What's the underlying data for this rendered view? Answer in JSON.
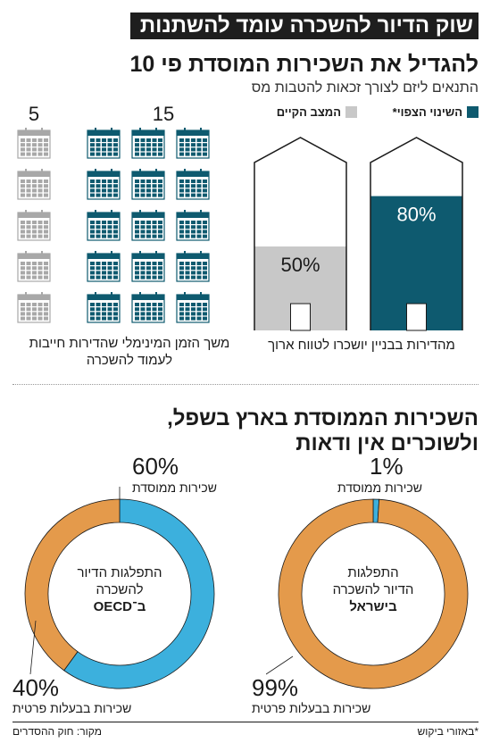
{
  "header": {
    "banner": "שוק הדיור להשכרה עומד להשתנות",
    "title": "להגדיל את השכירות המוסדת פי 10",
    "subtitle": "התנאים ליזם לצורך זכאות להטבות מס"
  },
  "legend": {
    "expected": "השינוי הצפוי*",
    "current": "המצב הקיים"
  },
  "colors": {
    "teal": "#0e5a6f",
    "gray": "#c8c8c8",
    "orange": "#e49a4b",
    "blue": "#3cb0dd"
  },
  "chart_data": [
    {
      "type": "bar",
      "categories": [
        "השינוי הצפוי*",
        "המצב הקיים"
      ],
      "values": [
        80,
        50
      ],
      "value_labels": [
        "80%",
        "50%"
      ],
      "ylim": [
        0,
        100
      ],
      "caption": "מהדירות בבניין יושכרו לטווח ארוך"
    },
    {
      "type": "bar",
      "categories": [
        "השינוי הצפוי*",
        "המצב הקיים"
      ],
      "values": [
        15,
        5
      ],
      "value_labels": [
        "15",
        "5"
      ],
      "caption": "משך הזמן המינימלי שהדירות חייבות לעמוד להשכרה"
    },
    {
      "type": "pie",
      "center_text": [
        "התפלגות",
        "הדיור להשכרה",
        "בישראל"
      ],
      "slices": [
        {
          "label": "שכירות ממוסדת",
          "value": 1,
          "value_label": "1%"
        },
        {
          "label": "שכירות בבעלות פרטית",
          "value": 99,
          "value_label": "99%"
        }
      ]
    },
    {
      "type": "pie",
      "center_text": [
        "התפלגות הדיור",
        "להשכרה",
        "ב־OECD"
      ],
      "slices": [
        {
          "label": "שכירות ממוסדת",
          "value": 60,
          "value_label": "60%"
        },
        {
          "label": "שכירות בבעלות פרטית",
          "value": 40,
          "value_label": "40%"
        }
      ]
    }
  ],
  "section2": {
    "title_line1": "השכירות הממוסדת בארץ בשפל,",
    "title_line2": "ולשוכרים אין ודאות"
  },
  "footer": {
    "note": "*באזורי ביקוש",
    "source": "מקור: חוק ההסדרים"
  }
}
